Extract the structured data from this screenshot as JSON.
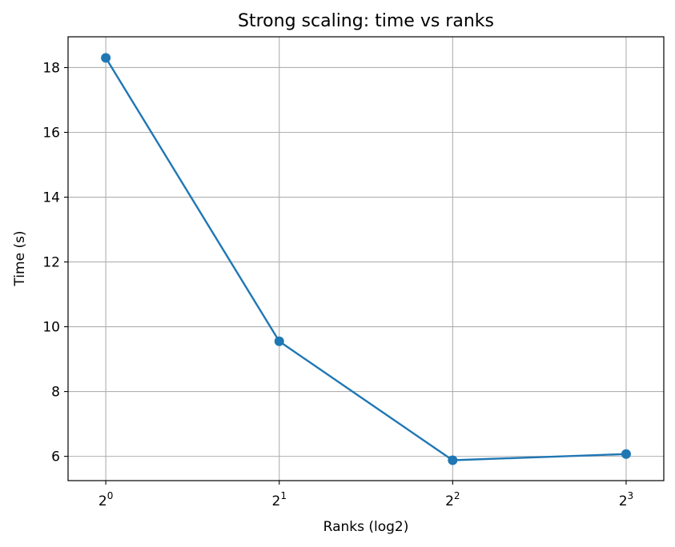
{
  "chart_data": {
    "type": "line",
    "title": "Strong scaling: time vs ranks",
    "xlabel": "Ranks (log2)",
    "ylabel": "Time (s)",
    "x_scale": "log2",
    "grid": true,
    "xlim": [
      0.86,
      9.3
    ],
    "ylim": [
      5.25,
      18.95
    ],
    "x_ticks": [
      {
        "value": 1,
        "base": "2",
        "exp": "0"
      },
      {
        "value": 2,
        "base": "2",
        "exp": "1"
      },
      {
        "value": 4,
        "base": "2",
        "exp": "2"
      },
      {
        "value": 8,
        "base": "2",
        "exp": "3"
      }
    ],
    "y_ticks": [
      6,
      8,
      10,
      12,
      14,
      16,
      18
    ],
    "series": [
      {
        "color": "#1f77b4",
        "marker": "circle",
        "x": [
          1,
          2,
          4,
          8
        ],
        "y": [
          18.3,
          9.55,
          5.88,
          6.07
        ]
      }
    ]
  }
}
